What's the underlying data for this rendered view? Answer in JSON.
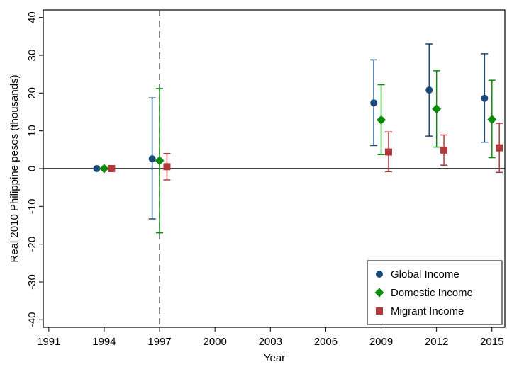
{
  "chart_data": {
    "type": "scatter",
    "title": "",
    "xlabel": "Year",
    "ylabel": "Real 2010 Philippine pesos (thousands)",
    "xlim": [
      1990.7,
      2015.7
    ],
    "ylim": [
      -42,
      42
    ],
    "x_ticks": [
      1991,
      1994,
      1997,
      2000,
      2003,
      2006,
      2009,
      2012,
      2015
    ],
    "y_ticks": [
      -40,
      -30,
      -20,
      -10,
      0,
      10,
      20,
      30,
      40
    ],
    "reference_line_y": 0,
    "vertical_dashed_line_x": 1997,
    "grid": false,
    "legend_position": "bottom-right",
    "series": [
      {
        "name": "Global Income",
        "marker": "circle",
        "color": "#1a4a7a",
        "points": [
          {
            "x": 1993.6,
            "y": 0,
            "low": null,
            "high": null
          },
          {
            "x": 1996.6,
            "y": 2.6,
            "low": -13.3,
            "high": 18.7
          },
          {
            "x": 2008.6,
            "y": 17.4,
            "low": 6.1,
            "high": 28.8
          },
          {
            "x": 2011.6,
            "y": 20.8,
            "low": 8.6,
            "high": 33.0
          },
          {
            "x": 2014.6,
            "y": 18.6,
            "low": 7.0,
            "high": 30.4
          }
        ]
      },
      {
        "name": "Domestic Income",
        "marker": "diamond",
        "color": "#0a8a0a",
        "points": [
          {
            "x": 1994.0,
            "y": 0,
            "low": null,
            "high": null
          },
          {
            "x": 1997.0,
            "y": 2.1,
            "low": -17.0,
            "high": 21.2
          },
          {
            "x": 2009.0,
            "y": 12.9,
            "low": 3.7,
            "high": 22.2
          },
          {
            "x": 2012.0,
            "y": 15.8,
            "low": 5.7,
            "high": 25.9
          },
          {
            "x": 2015.0,
            "y": 13.0,
            "low": 2.9,
            "high": 23.4
          }
        ]
      },
      {
        "name": "Migrant Income",
        "marker": "square",
        "color": "#b03a3a",
        "points": [
          {
            "x": 1994.4,
            "y": 0,
            "low": null,
            "high": null
          },
          {
            "x": 1997.4,
            "y": 0.5,
            "low": -3.0,
            "high": 4.0
          },
          {
            "x": 2009.4,
            "y": 4.4,
            "low": -0.8,
            "high": 9.7
          },
          {
            "x": 2012.4,
            "y": 4.9,
            "low": 0.9,
            "high": 8.9
          },
          {
            "x": 2015.4,
            "y": 5.5,
            "low": -1.0,
            "high": 12.0
          }
        ]
      }
    ]
  }
}
